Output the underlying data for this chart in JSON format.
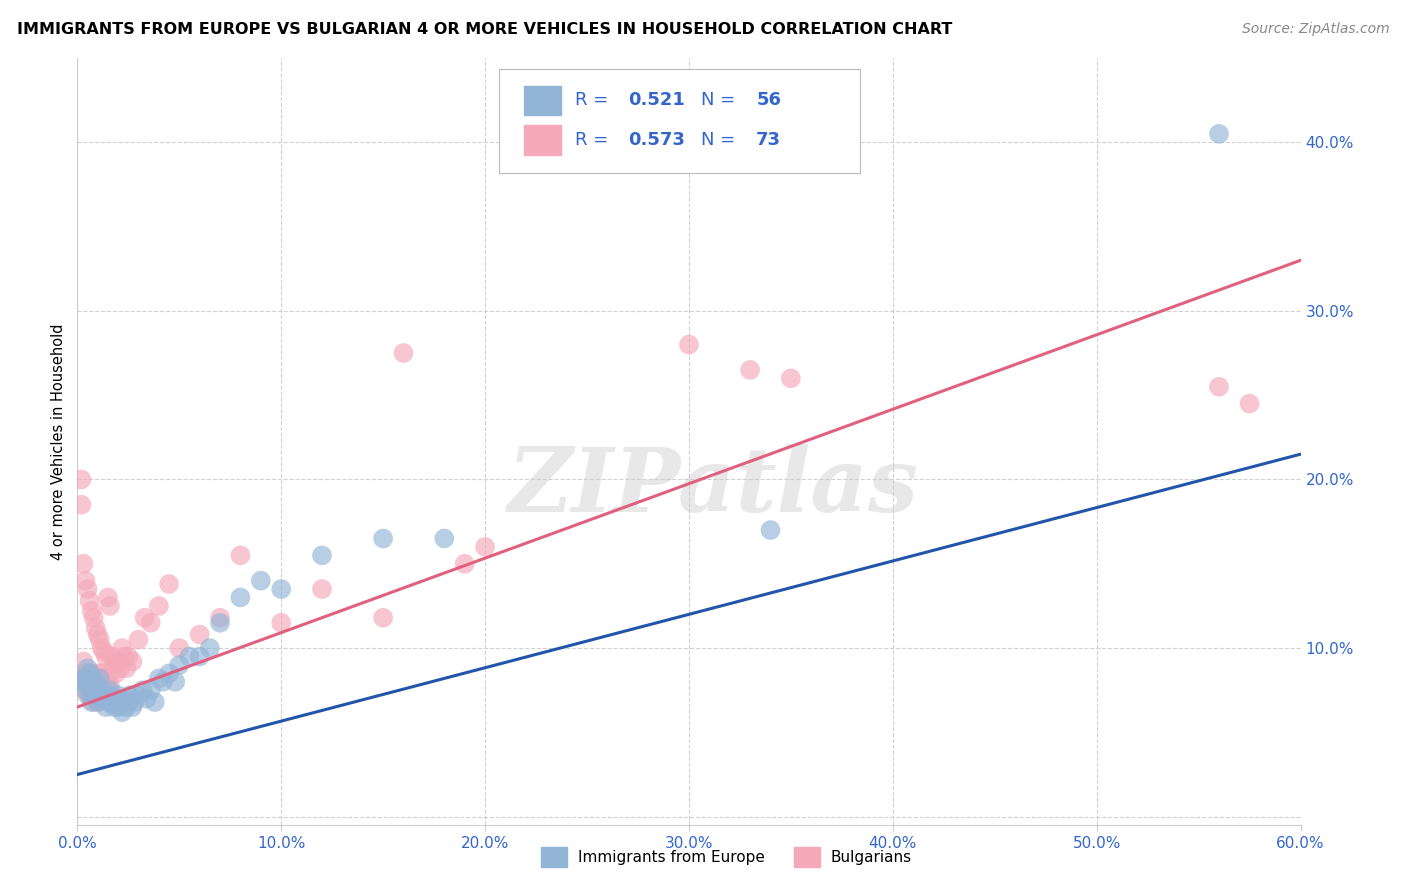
{
  "title": "IMMIGRANTS FROM EUROPE VS BULGARIAN 4 OR MORE VEHICLES IN HOUSEHOLD CORRELATION CHART",
  "source": "Source: ZipAtlas.com",
  "ylabel": "4 or more Vehicles in Household",
  "xlim": [
    0.0,
    0.6
  ],
  "ylim": [
    -0.005,
    0.45
  ],
  "xticks": [
    0.0,
    0.1,
    0.2,
    0.3,
    0.4,
    0.5,
    0.6
  ],
  "yticks": [
    0.0,
    0.1,
    0.2,
    0.3,
    0.4
  ],
  "ytick_labels": [
    "",
    "10.0%",
    "20.0%",
    "30.0%",
    "40.0%"
  ],
  "xtick_labels": [
    "0.0%",
    "10.0%",
    "20.0%",
    "30.0%",
    "40.0%",
    "50.0%",
    "60.0%"
  ],
  "blue_color": "#92B4D7",
  "pink_color": "#F4A8B8",
  "blue_line_color": "#2255AA",
  "pink_line_color": "#E06080",
  "tick_label_color": "#3366CC",
  "legend_R1": "0.521",
  "legend_N1": "56",
  "legend_R2": "0.573",
  "legend_N2": "73",
  "watermark": "ZIPatlas",
  "blue_line_x": [
    0.0,
    0.6
  ],
  "blue_line_y": [
    0.025,
    0.215
  ],
  "pink_line_x": [
    0.0,
    0.6
  ],
  "pink_line_y": [
    0.065,
    0.33
  ],
  "blue_scatter_x": [
    0.002,
    0.003,
    0.004,
    0.005,
    0.005,
    0.006,
    0.006,
    0.007,
    0.007,
    0.008,
    0.008,
    0.009,
    0.01,
    0.01,
    0.011,
    0.012,
    0.013,
    0.014,
    0.015,
    0.015,
    0.016,
    0.017,
    0.018,
    0.019,
    0.02,
    0.02,
    0.021,
    0.022,
    0.023,
    0.024,
    0.025,
    0.026,
    0.027,
    0.028,
    0.03,
    0.032,
    0.034,
    0.036,
    0.038,
    0.04,
    0.042,
    0.045,
    0.048,
    0.05,
    0.055,
    0.06,
    0.065,
    0.07,
    0.08,
    0.09,
    0.1,
    0.12,
    0.15,
    0.18,
    0.34,
    0.56
  ],
  "blue_scatter_y": [
    0.08,
    0.082,
    0.075,
    0.088,
    0.078,
    0.085,
    0.072,
    0.082,
    0.068,
    0.078,
    0.072,
    0.08,
    0.075,
    0.068,
    0.082,
    0.075,
    0.07,
    0.065,
    0.072,
    0.068,
    0.075,
    0.07,
    0.065,
    0.068,
    0.072,
    0.065,
    0.068,
    0.062,
    0.07,
    0.065,
    0.068,
    0.072,
    0.065,
    0.068,
    0.072,
    0.075,
    0.07,
    0.075,
    0.068,
    0.082,
    0.08,
    0.085,
    0.08,
    0.09,
    0.095,
    0.095,
    0.1,
    0.115,
    0.13,
    0.14,
    0.135,
    0.155,
    0.165,
    0.165,
    0.17,
    0.405
  ],
  "pink_scatter_x": [
    0.001,
    0.002,
    0.002,
    0.003,
    0.003,
    0.004,
    0.004,
    0.004,
    0.005,
    0.005,
    0.005,
    0.006,
    0.006,
    0.006,
    0.007,
    0.007,
    0.007,
    0.007,
    0.008,
    0.008,
    0.008,
    0.008,
    0.009,
    0.009,
    0.009,
    0.01,
    0.01,
    0.01,
    0.01,
    0.011,
    0.011,
    0.011,
    0.012,
    0.012,
    0.012,
    0.013,
    0.013,
    0.014,
    0.014,
    0.015,
    0.015,
    0.016,
    0.016,
    0.017,
    0.018,
    0.019,
    0.02,
    0.021,
    0.022,
    0.023,
    0.024,
    0.025,
    0.027,
    0.03,
    0.033,
    0.036,
    0.04,
    0.045,
    0.05,
    0.06,
    0.07,
    0.08,
    0.1,
    0.12,
    0.15,
    0.16,
    0.19,
    0.2,
    0.3,
    0.33,
    0.35,
    0.56,
    0.575
  ],
  "pink_scatter_y": [
    0.082,
    0.2,
    0.185,
    0.092,
    0.15,
    0.085,
    0.14,
    0.078,
    0.135,
    0.082,
    0.072,
    0.128,
    0.08,
    0.078,
    0.122,
    0.085,
    0.075,
    0.072,
    0.118,
    0.08,
    0.075,
    0.068,
    0.112,
    0.082,
    0.072,
    0.108,
    0.085,
    0.078,
    0.068,
    0.105,
    0.082,
    0.072,
    0.1,
    0.085,
    0.075,
    0.098,
    0.082,
    0.095,
    0.078,
    0.13,
    0.082,
    0.125,
    0.078,
    0.095,
    0.09,
    0.085,
    0.092,
    0.088,
    0.1,
    0.095,
    0.088,
    0.095,
    0.092,
    0.105,
    0.118,
    0.115,
    0.125,
    0.138,
    0.1,
    0.108,
    0.118,
    0.155,
    0.115,
    0.135,
    0.118,
    0.275,
    0.15,
    0.16,
    0.28,
    0.265,
    0.26,
    0.255,
    0.245
  ]
}
